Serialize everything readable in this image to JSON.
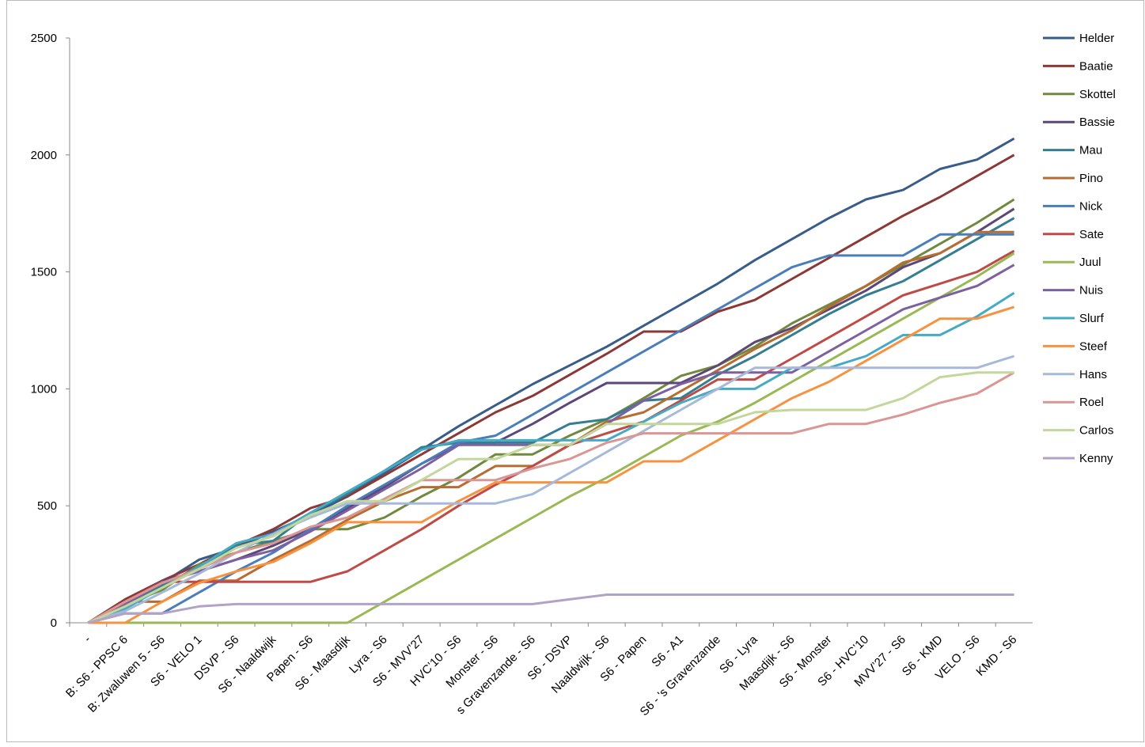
{
  "chart_data": {
    "type": "line",
    "categories": [
      "-",
      "B: S6 - PPSC 6",
      "B: Zwaluwen 5 - S6",
      "S6 - VELO 1",
      "DSVP - S6",
      "S6 - Naaldwijk",
      "Papen - S6",
      "S6 - Maasdijk",
      "Lyra - S6",
      "S6 - MVV’27",
      "HVC’10 - S6",
      "Monster - S6",
      "s Gravenzande - S6",
      "S6 - DSVP",
      "Naaldwijk - S6",
      "S6 - Papen",
      "S6 - A1",
      "S6 - 's Gravenzande",
      "S6 - Lyra",
      "Maasdijk - S6",
      "S6 - Monster",
      "S6 - HVC’10",
      "MVV’27 - S6",
      "S6 - KMD",
      "VELO - S6",
      "KMD - S6"
    ],
    "ylim": [
      0,
      2500
    ],
    "yticks": [
      0,
      500,
      1000,
      1500,
      2000,
      2500
    ],
    "grid": false,
    "legend": "right",
    "series": [
      {
        "name": "Helder",
        "color": "#385d8a",
        "values": [
          0,
          80,
          170,
          270,
          320,
          390,
          460,
          540,
          640,
          740,
          840,
          930,
          1020,
          1100,
          1180,
          1270,
          1360,
          1450,
          1550,
          1640,
          1730,
          1810,
          1850,
          1940,
          1980,
          2070
        ]
      },
      {
        "name": "Baatie",
        "color": "#8c3836",
        "values": [
          0,
          100,
          180,
          250,
          330,
          400,
          490,
          540,
          630,
          720,
          810,
          900,
          970,
          1060,
          1150,
          1245,
          1245,
          1330,
          1380,
          1470,
          1560,
          1650,
          1740,
          1820,
          1910,
          2000
        ]
      },
      {
        "name": "Skottel",
        "color": "#71893f",
        "values": [
          0,
          80,
          140,
          250,
          300,
          350,
          400,
          400,
          450,
          540,
          620,
          720,
          720,
          800,
          870,
          960,
          1055,
          1100,
          1180,
          1280,
          1360,
          1440,
          1530,
          1620,
          1710,
          1810
        ]
      },
      {
        "name": "Bassie",
        "color": "#5c4776",
        "values": [
          0,
          80,
          180,
          220,
          270,
          330,
          400,
          490,
          580,
          680,
          760,
          770,
          850,
          940,
          1025,
          1025,
          1025,
          1100,
          1200,
          1260,
          1340,
          1420,
          1520,
          1580,
          1670,
          1770
        ]
      },
      {
        "name": "Mau",
        "color": "#357d91",
        "values": [
          0,
          80,
          160,
          240,
          330,
          350,
          470,
          550,
          650,
          750,
          770,
          770,
          770,
          850,
          870,
          950,
          960,
          1060,
          1140,
          1230,
          1320,
          1400,
          1460,
          1550,
          1640,
          1730
        ]
      },
      {
        "name": "Pino",
        "color": "#b66d31",
        "values": [
          0,
          90,
          90,
          180,
          180,
          270,
          350,
          440,
          520,
          580,
          580,
          670,
          670,
          760,
          860,
          900,
          990,
          1080,
          1170,
          1250,
          1350,
          1440,
          1540,
          1580,
          1670,
          1670
        ]
      },
      {
        "name": "Nick",
        "color": "#4a7ebb",
        "values": [
          0,
          40,
          40,
          130,
          220,
          300,
          400,
          500,
          590,
          680,
          770,
          800,
          890,
          980,
          1070,
          1160,
          1250,
          1340,
          1430,
          1520,
          1570,
          1570,
          1570,
          1660,
          1660,
          1660
        ]
      },
      {
        "name": "Sate",
        "color": "#be4b48",
        "values": [
          0,
          90,
          175,
          175,
          175,
          175,
          175,
          220,
          310,
          400,
          500,
          590,
          670,
          760,
          810,
          860,
          950,
          1040,
          1040,
          1130,
          1220,
          1310,
          1400,
          1450,
          1500,
          1590
        ]
      },
      {
        "name": "Juul",
        "color": "#98b954",
        "values": [
          0,
          0,
          0,
          0,
          0,
          0,
          0,
          0,
          90,
          180,
          270,
          360,
          450,
          540,
          620,
          710,
          800,
          860,
          940,
          1030,
          1120,
          1210,
          1300,
          1390,
          1480,
          1580
        ]
      },
      {
        "name": "Nuis",
        "color": "#7d60a0",
        "values": [
          0,
          80,
          170,
          220,
          270,
          310,
          390,
          480,
          570,
          660,
          760,
          760,
          760,
          760,
          850,
          950,
          1020,
          1070,
          1070,
          1070,
          1160,
          1250,
          1340,
          1390,
          1440,
          1530
        ]
      },
      {
        "name": "Slurf",
        "color": "#46aac5",
        "values": [
          0,
          60,
          150,
          240,
          340,
          380,
          470,
          560,
          650,
          740,
          780,
          780,
          780,
          780,
          780,
          860,
          940,
          1000,
          1000,
          1090,
          1090,
          1140,
          1230,
          1230,
          1310,
          1410
        ]
      },
      {
        "name": "Steef",
        "color": "#f69240",
        "values": [
          0,
          0,
          90,
          170,
          220,
          260,
          340,
          430,
          430,
          430,
          520,
          600,
          600,
          600,
          600,
          690,
          690,
          780,
          870,
          960,
          1030,
          1120,
          1210,
          1300,
          1300,
          1350
        ]
      },
      {
        "name": "Hans",
        "color": "#a7b9d9",
        "values": [
          0,
          50,
          130,
          210,
          300,
          380,
          450,
          510,
          510,
          510,
          510,
          510,
          550,
          640,
          730,
          820,
          910,
          1000,
          1090,
          1090,
          1090,
          1090,
          1090,
          1090,
          1090,
          1140
        ]
      },
      {
        "name": "Roel",
        "color": "#d99694",
        "values": [
          0,
          90,
          170,
          230,
          300,
          340,
          410,
          450,
          530,
          610,
          610,
          610,
          660,
          700,
          770,
          810,
          810,
          810,
          810,
          810,
          850,
          850,
          890,
          940,
          980,
          1070
        ]
      },
      {
        "name": "Carlos",
        "color": "#c3d69b",
        "values": [
          0,
          70,
          150,
          230,
          320,
          370,
          460,
          520,
          520,
          610,
          700,
          700,
          760,
          760,
          850,
          850,
          850,
          850,
          900,
          910,
          910,
          910,
          960,
          1050,
          1070,
          1070
        ]
      },
      {
        "name": "Kenny",
        "color": "#b3a2c7",
        "values": [
          0,
          40,
          40,
          70,
          80,
          80,
          80,
          80,
          80,
          80,
          80,
          80,
          80,
          100,
          120,
          120,
          120,
          120,
          120,
          120,
          120,
          120,
          120,
          120,
          120,
          120
        ]
      }
    ]
  }
}
